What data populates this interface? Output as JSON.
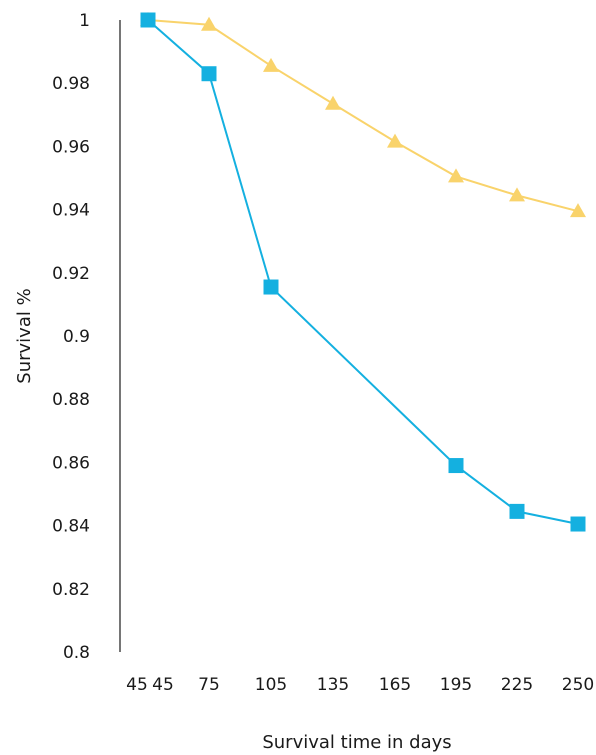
{
  "chart_data": {
    "type": "line",
    "x_tick_labels": [
      "45",
      "45",
      "75",
      "105",
      "135",
      "165",
      "195",
      "225",
      "250"
    ],
    "xlabel": "Survival time in days",
    "ylabel": "Survival %",
    "ylim": [
      0.8,
      1
    ],
    "y_ticks": [
      0.8,
      0.82,
      0.84,
      0.86,
      0.88,
      0.9,
      0.92,
      0.94,
      0.96,
      0.98,
      1
    ],
    "y_tick_labels": [
      "0.8",
      "0.82",
      "0.84",
      "0.86",
      "0.88",
      "0.9",
      "0.92",
      "0.94",
      "0.96",
      "0.98",
      "1"
    ],
    "grid": false,
    "legend": "none",
    "series": [
      {
        "marker": "triangle",
        "color": "#f9d36b",
        "points": [
          {
            "x": 45,
            "y": 1.0
          },
          {
            "x": 75,
            "y": 0.9985
          },
          {
            "x": 105,
            "y": 0.9855
          },
          {
            "x": 135,
            "y": 0.9735
          },
          {
            "x": 165,
            "y": 0.9615
          },
          {
            "x": 195,
            "y": 0.9505
          },
          {
            "x": 225,
            "y": 0.9445
          },
          {
            "x": 250,
            "y": 0.9395
          }
        ]
      },
      {
        "marker": "square",
        "color": "#14b0e0",
        "points": [
          {
            "x": 45,
            "y": 1.0
          },
          {
            "x": 75,
            "y": 0.983
          },
          {
            "x": 105,
            "y": 0.9155
          },
          {
            "x": 195,
            "y": 0.859
          },
          {
            "x": 225,
            "y": 0.8445
          },
          {
            "x": 250,
            "y": 0.8405
          }
        ]
      }
    ]
  }
}
